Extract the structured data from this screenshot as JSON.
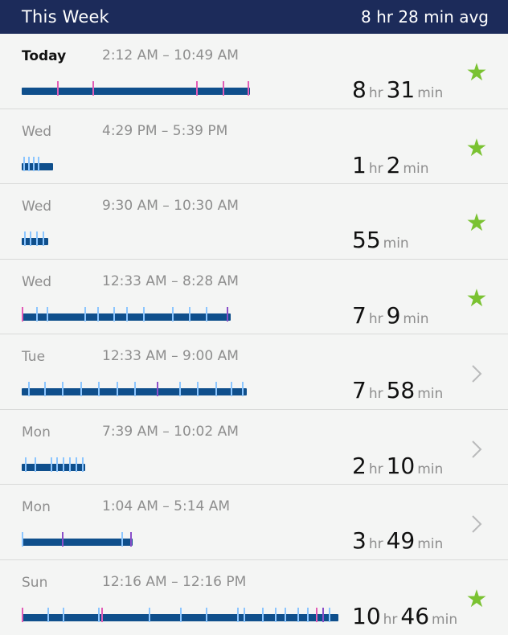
{
  "header": {
    "title": "This Week",
    "average": "8 hr 28 min avg"
  },
  "colors": {
    "header_bg": "#1c2b5a",
    "bar_base": "#0f4f8c",
    "awake_tick": "#4aa0ff",
    "restless_tick": "#e25cb6",
    "star": "#7ac231"
  },
  "rows": [
    {
      "day": "Today",
      "range": "2:12 AM – 10:49 AM",
      "h": "8",
      "h_unit": "hr",
      "m": "31",
      "m_unit": "min",
      "status": "star-icon",
      "bar_fraction": 0.72,
      "ticks": [
        0.155,
        0.31,
        0.765,
        0.88,
        0.99
      ],
      "tick_kinds": [
        "pink",
        "pink",
        "pink",
        "pink",
        "pink"
      ]
    },
    {
      "day": "Wed",
      "range": "4:29 PM – 5:39 PM",
      "h": "1",
      "h_unit": "hr",
      "m": "2",
      "m_unit": "min",
      "status": "star-icon",
      "bar_fraction": 0.1,
      "ticks": [
        0.05,
        0.2,
        0.35,
        0.5
      ],
      "tick_kinds": [
        "light",
        "light",
        "light",
        "light"
      ]
    },
    {
      "day": "Wed",
      "range": "9:30 AM – 10:30 AM",
      "h": "",
      "h_unit": "",
      "m": "55",
      "m_unit": "min",
      "status": "star-icon",
      "bar_fraction": 0.085,
      "ticks": [
        0.1,
        0.3,
        0.55,
        0.8
      ],
      "tick_kinds": [
        "light",
        "light",
        "light",
        "light"
      ]
    },
    {
      "day": "Wed",
      "range": "12:33 AM – 8:28 AM",
      "h": "7",
      "h_unit": "hr",
      "m": "9",
      "m_unit": "min",
      "status": "star-icon",
      "bar_fraction": 0.66,
      "ticks": [
        0.0,
        0.07,
        0.12,
        0.3,
        0.36,
        0.44,
        0.5,
        0.58,
        0.72,
        0.8,
        0.88,
        0.98
      ],
      "tick_kinds": [
        "pink",
        "light",
        "light",
        "light",
        "light",
        "light",
        "light",
        "light",
        "light",
        "light",
        "light",
        "purple"
      ]
    },
    {
      "day": "Tue",
      "range": "12:33 AM – 9:00 AM",
      "h": "7",
      "h_unit": "hr",
      "m": "58",
      "m_unit": "min",
      "status": "chevron-right-icon",
      "bar_fraction": 0.71,
      "ticks": [
        0.03,
        0.1,
        0.18,
        0.26,
        0.34,
        0.42,
        0.5,
        0.6,
        0.7,
        0.78,
        0.86,
        0.93,
        0.98
      ],
      "tick_kinds": [
        "light",
        "light",
        "light",
        "light",
        "light",
        "light",
        "light",
        "purple",
        "light",
        "light",
        "light",
        "light",
        "light"
      ]
    },
    {
      "day": "Mon",
      "range": "7:39 AM – 10:02 AM",
      "h": "2",
      "h_unit": "hr",
      "m": "10",
      "m_unit": "min",
      "status": "chevron-right-icon",
      "bar_fraction": 0.2,
      "ticks": [
        0.05,
        0.2,
        0.45,
        0.55,
        0.65,
        0.75,
        0.85,
        0.95
      ],
      "tick_kinds": [
        "light",
        "light",
        "light",
        "light",
        "light",
        "light",
        "light",
        "light"
      ]
    },
    {
      "day": "Mon",
      "range": "1:04 AM – 5:14 AM",
      "h": "3",
      "h_unit": "hr",
      "m": "49",
      "m_unit": "min",
      "status": "chevron-right-icon",
      "bar_fraction": 0.35,
      "ticks": [
        0.0,
        0.36,
        0.9,
        0.98
      ],
      "tick_kinds": [
        "light",
        "purple",
        "light",
        "purple"
      ]
    },
    {
      "day": "Sun",
      "range": "12:16 AM – 12:16 PM",
      "h": "10",
      "h_unit": "hr",
      "m": "46",
      "m_unit": "min",
      "status": "star-icon",
      "bar_fraction": 1.0,
      "ticks": [
        0.0,
        0.08,
        0.13,
        0.24,
        0.25,
        0.4,
        0.5,
        0.58,
        0.68,
        0.7,
        0.76,
        0.8,
        0.83,
        0.87,
        0.9,
        0.93,
        0.95,
        0.97
      ],
      "tick_kinds": [
        "pink",
        "light",
        "light",
        "light",
        "pink",
        "light",
        "light",
        "light",
        "light",
        "light",
        "light",
        "light",
        "light",
        "light",
        "light",
        "pink",
        "purple",
        "light"
      ]
    }
  ]
}
